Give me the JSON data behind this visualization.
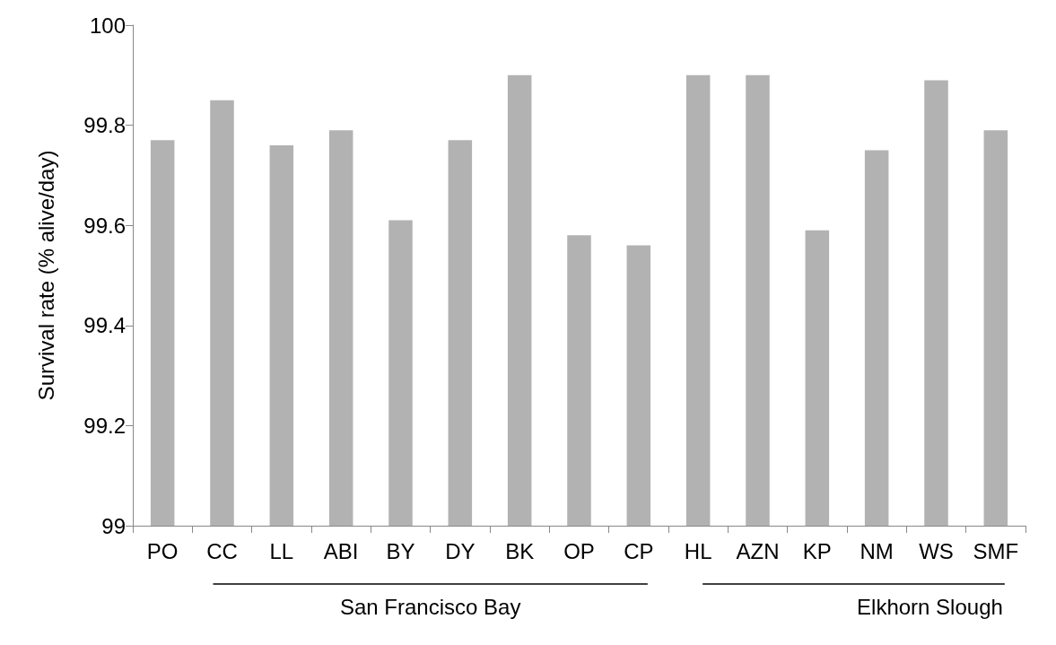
{
  "chart_data": {
    "type": "bar",
    "ylabel": "Survival rate (% alive/day)",
    "categories": [
      "PO",
      "CC",
      "LL",
      "ABI",
      "BY",
      "DY",
      "BK",
      "OP",
      "CP",
      "HL",
      "AZN",
      "KP",
      "NM",
      "WS",
      "SMF"
    ],
    "values": [
      99.77,
      99.85,
      99.76,
      99.79,
      99.61,
      99.77,
      99.9,
      99.58,
      99.56,
      99.9,
      99.9,
      99.59,
      99.75,
      99.89,
      99.79
    ],
    "color": "#b2b2b2",
    "ylim": [
      99,
      100
    ],
    "yticks": [
      99,
      99.2,
      99.4,
      99.6,
      99.8,
      100
    ],
    "grid": false,
    "annotations": [
      "San Francisco Bay",
      "Elkhorn Slough"
    ]
  }
}
